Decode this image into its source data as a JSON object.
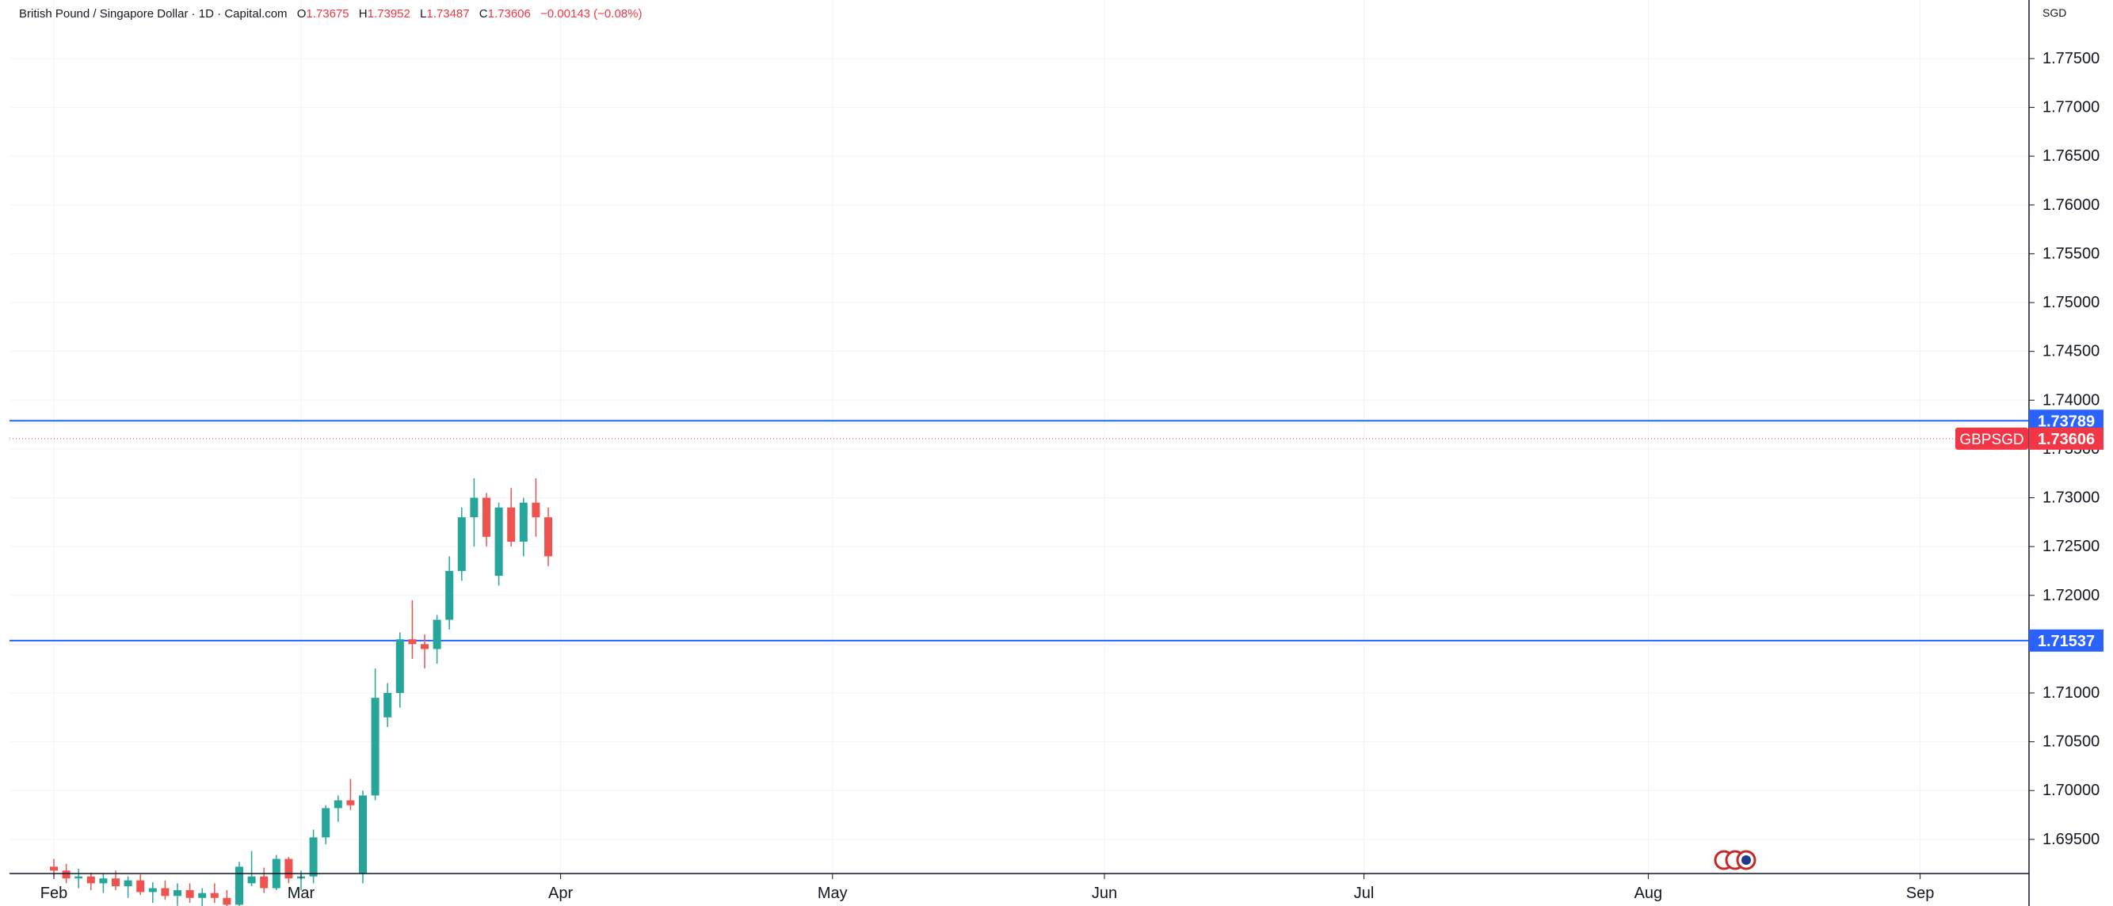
{
  "header": {
    "symbol_title": "British Pound / Singapore Dollar",
    "separator": "·",
    "timeframe": "1D",
    "source": "Capital.com",
    "open_label": "O",
    "open": "1.73675",
    "high_label": "H",
    "high": "1.73952",
    "low_label": "L",
    "low": "1.73487",
    "close_label": "C",
    "close": "1.73606",
    "change": "−0.00143 (−0.08%)"
  },
  "currency": "SGD",
  "colors": {
    "up": "#26a69a",
    "down": "#ef5350",
    "hline": "#2962ff",
    "grid": "#f0f3fa",
    "price_tag": "#f23645"
  },
  "chart_data": {
    "type": "candlestick",
    "title": "British Pound / Singapore Dollar · 1D · Capital.com",
    "symbol": "GBPSGD",
    "currency": "SGD",
    "ylim": [
      1.6915,
      1.781
    ],
    "y_ticks": [
      "1.69500",
      "1.70000",
      "1.70500",
      "1.71000",
      "1.71500",
      "1.72000",
      "1.72500",
      "1.73000",
      "1.73500",
      "1.74000",
      "1.74500",
      "1.75000",
      "1.75500",
      "1.76000",
      "1.76500",
      "1.77000",
      "1.77500"
    ],
    "x_ticks": [
      {
        "label": "Feb",
        "index": 0
      },
      {
        "label": "Mar",
        "index": 20
      },
      {
        "label": "Apr",
        "index": 41
      },
      {
        "label": "May",
        "index": 63
      },
      {
        "label": "Jun",
        "index": 85
      },
      {
        "label": "Jul",
        "index": 106
      },
      {
        "label": "Aug",
        "index": 129
      },
      {
        "label": "Sep",
        "index": 151
      }
    ],
    "horizontal_lines": [
      {
        "label": "1.73789",
        "value": 1.73789
      },
      {
        "label": "1.71537",
        "value": 1.71537
      }
    ],
    "last_price": {
      "symbol": "GBPSGD",
      "label": "1.73606",
      "value": 1.73606
    },
    "candles": [
      [
        1.6922,
        1.693,
        1.6912,
        1.6918
      ],
      [
        1.6918,
        1.6925,
        1.6905,
        1.691
      ],
      [
        1.691,
        1.692,
        1.69,
        1.6912
      ],
      [
        1.6912,
        1.6916,
        1.6898,
        1.6905
      ],
      [
        1.6905,
        1.6915,
        1.6895,
        1.691
      ],
      [
        1.691,
        1.6918,
        1.6898,
        1.6902
      ],
      [
        1.6902,
        1.6912,
        1.689,
        1.6908
      ],
      [
        1.6908,
        1.6914,
        1.6893,
        1.6896
      ],
      [
        1.6896,
        1.6906,
        1.6885,
        1.69
      ],
      [
        1.69,
        1.6908,
        1.6888,
        1.6892
      ],
      [
        1.6892,
        1.6905,
        1.6882,
        1.6898
      ],
      [
        1.6898,
        1.6905,
        1.6885,
        1.689
      ],
      [
        1.689,
        1.69,
        1.688,
        1.6895
      ],
      [
        1.6895,
        1.6905,
        1.6885,
        1.689
      ],
      [
        1.689,
        1.6898,
        1.6875,
        1.6883
      ],
      [
        1.6883,
        1.6927,
        1.688,
        1.6922
      ],
      [
        1.6905,
        1.6938,
        1.6902,
        1.6912
      ],
      [
        1.6912,
        1.6921,
        1.6895,
        1.69
      ],
      [
        1.69,
        1.6934,
        1.6898,
        1.693
      ],
      [
        1.693,
        1.6932,
        1.6905,
        1.691
      ],
      [
        1.691,
        1.6918,
        1.6898,
        1.6912
      ],
      [
        1.6912,
        1.696,
        1.6905,
        1.6952
      ],
      [
        1.6952,
        1.6985,
        1.6945,
        1.6982
      ],
      [
        1.6982,
        1.6995,
        1.6968,
        1.699
      ],
      [
        1.699,
        1.7012,
        1.698,
        1.6985
      ],
      [
        1.6915,
        1.7,
        1.6905,
        1.6995
      ],
      [
        1.6995,
        1.7125,
        1.699,
        1.7095
      ],
      [
        1.7075,
        1.711,
        1.7065,
        1.71
      ],
      [
        1.71,
        1.7162,
        1.7085,
        1.7155
      ],
      [
        1.7155,
        1.7195,
        1.7135,
        1.715
      ],
      [
        1.715,
        1.716,
        1.7125,
        1.7145
      ],
      [
        1.7145,
        1.718,
        1.713,
        1.7175
      ],
      [
        1.7175,
        1.724,
        1.7165,
        1.7225
      ],
      [
        1.7225,
        1.729,
        1.7215,
        1.728
      ],
      [
        1.728,
        1.732,
        1.725,
        1.73
      ],
      [
        1.73,
        1.7305,
        1.725,
        1.726
      ],
      [
        1.722,
        1.7295,
        1.721,
        1.729
      ],
      [
        1.729,
        1.731,
        1.725,
        1.7255
      ],
      [
        1.7255,
        1.73,
        1.724,
        1.7295
      ],
      [
        1.7295,
        1.732,
        1.726,
        1.728
      ],
      [
        1.728,
        1.729,
        1.723,
        1.724
      ]
    ]
  }
}
